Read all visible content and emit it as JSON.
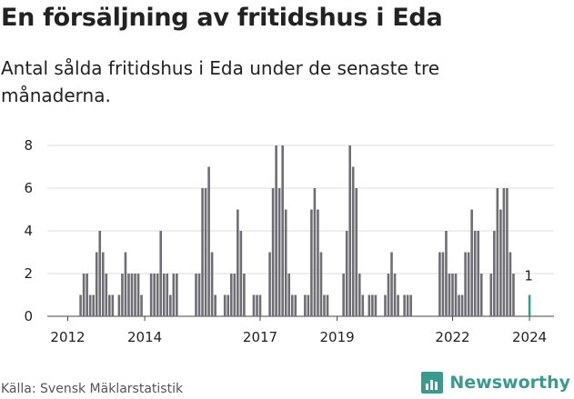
{
  "header": {
    "title": "En försäljning av fritidshus i Eda",
    "subtitle": "Antal sålda fritidshus i Eda under de senaste tre månaderna."
  },
  "footer": {
    "source": "Källa: Svensk Mäklarstatistik",
    "brand": "Newsworthy"
  },
  "colors": {
    "bar": "#6e6e74",
    "highlight": "#2aa68c",
    "grid": "#dddddd",
    "brand": "#3a9a8e"
  },
  "chart_data": {
    "type": "bar",
    "title": "En försäljning av fritidshus i Eda",
    "xlabel": "",
    "ylabel": "",
    "ylim": [
      0,
      8
    ],
    "yticks": [
      0,
      2,
      4,
      6,
      8
    ],
    "x_tick_labels": [
      {
        "label": "2012",
        "month_index": 0
      },
      {
        "label": "2014",
        "month_index": 24
      },
      {
        "label": "2017",
        "month_index": 60
      },
      {
        "label": "2019",
        "month_index": 84
      },
      {
        "label": "2022",
        "month_index": 120
      },
      {
        "label": "2024",
        "month_index": 144
      }
    ],
    "grid": true,
    "start_month": "2012-01",
    "frequency": "monthly",
    "values": [
      0,
      0,
      0,
      0,
      1,
      2,
      2,
      1,
      1,
      3,
      4,
      3,
      2,
      1,
      1,
      0,
      1,
      2,
      3,
      2,
      2,
      2,
      2,
      1,
      0,
      0,
      2,
      2,
      2,
      4,
      2,
      2,
      1,
      2,
      2,
      0,
      0,
      0,
      0,
      0,
      2,
      2,
      6,
      6,
      7,
      3,
      1,
      0,
      0,
      1,
      1,
      2,
      2,
      5,
      4,
      2,
      0,
      0,
      1,
      1,
      1,
      0,
      0,
      3,
      6,
      8,
      6,
      8,
      5,
      2,
      1,
      1,
      0,
      0,
      1,
      1,
      5,
      6,
      5,
      3,
      1,
      1,
      0,
      0,
      0,
      0,
      2,
      4,
      8,
      7,
      6,
      2,
      1,
      0,
      1,
      1,
      1,
      0,
      0,
      1,
      2,
      3,
      2,
      1,
      0,
      1,
      1,
      1,
      0,
      0,
      0,
      0,
      0,
      0,
      0,
      0,
      3,
      3,
      4,
      2,
      2,
      2,
      1,
      1,
      3,
      3,
      5,
      4,
      4,
      2,
      0,
      0,
      2,
      4,
      6,
      5,
      6,
      6,
      3,
      2
    ],
    "highlight": {
      "month": "2024-01",
      "value": 1,
      "label": "1"
    }
  }
}
